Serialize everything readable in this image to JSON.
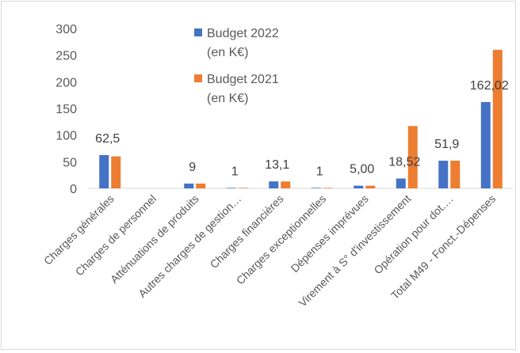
{
  "chart_data": {
    "type": "bar",
    "categories": [
      "Charges générales",
      "Charges de personnel",
      "Atténuations de produits",
      "Autres charges de gestion…",
      "Charges financières",
      "Charges exceptionnelles",
      "Dépenses imprévues",
      "Virement à S° d'investissement",
      "Opération pour dot.…",
      "Total M49 - Fonct.-Dépenses"
    ],
    "series": [
      {
        "name": "Budget 2022 (en K€)",
        "legend_lines": [
          "Budget 2022",
          "(en K€)"
        ],
        "color": "#4472C4",
        "values": [
          62.5,
          0,
          9,
          1,
          13.1,
          1,
          5.0,
          18.52,
          51.9,
          162.02
        ]
      },
      {
        "name": "Budget 2021 (en K€)",
        "legend_lines": [
          "Budget 2021",
          "(en K€)"
        ],
        "color": "#ED7D31",
        "values": [
          60,
          0,
          9,
          1,
          13,
          1,
          5,
          117,
          52,
          260
        ]
      }
    ],
    "data_labels": [
      "62,5",
      "",
      "9",
      "1",
      "13,1",
      "1",
      "5,00",
      "18,52",
      "51,9",
      "162,02"
    ],
    "yticks": [
      "0",
      "50",
      "100",
      "150",
      "200",
      "250",
      "300"
    ],
    "ylim": [
      0,
      300
    ],
    "title": "",
    "xlabel": "",
    "ylabel": "",
    "legend_position": "top-center",
    "grid": false
  }
}
